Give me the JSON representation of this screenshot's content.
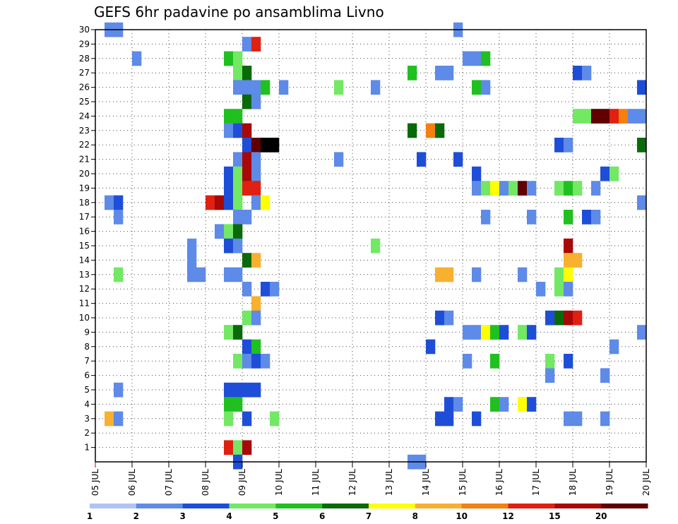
{
  "chart_data": {
    "type": "heatmap",
    "title": "GEFS 6hr padavine po ansamblima Livno",
    "xlabel": "",
    "ylabel": "",
    "x_ticks": [
      "05 JUL",
      "06 JUL",
      "07 JUL",
      "08 JUL",
      "09 JUL",
      "10 JUL",
      "11 JUL",
      "12 JUL",
      "13 JUL",
      "14 JUL",
      "15 JUL",
      "16 JUL",
      "17 JUL",
      "18 JUL",
      "19 JUL",
      "20 JUL"
    ],
    "x_range_days": [
      5,
      20
    ],
    "x_step_hours": 6,
    "y_ticks": [
      1,
      2,
      3,
      4,
      5,
      6,
      7,
      8,
      9,
      10,
      11,
      12,
      13,
      14,
      15,
      16,
      17,
      18,
      19,
      20,
      21,
      22,
      23,
      24,
      25,
      26,
      27,
      28,
      29,
      30
    ],
    "y_range": [
      0,
      30
    ],
    "grid": true,
    "legend": {
      "placement": "bottom",
      "labels": [
        "1",
        "2",
        "3",
        "4",
        "5",
        "6",
        "7",
        "8",
        "10",
        "12",
        "15",
        "20"
      ],
      "colors": [
        "#b0c4f4",
        "#5e8ae8",
        "#1e4ed8",
        "#72e864",
        "#20c020",
        "#0a6a0a",
        "#ffff00",
        "#f8b030",
        "#f48010",
        "#e02010",
        "#a80808",
        "#600000"
      ]
    },
    "cells": [
      [
        0.25,
        30,
        1
      ],
      [
        0.5,
        30,
        1
      ],
      [
        9.75,
        30,
        1
      ],
      [
        4,
        29,
        1
      ],
      [
        4.25,
        29,
        9
      ],
      [
        1,
        28,
        1
      ],
      [
        3.5,
        28,
        4
      ],
      [
        3.75,
        28,
        3
      ],
      [
        10,
        28,
        1
      ],
      [
        10.25,
        28,
        1
      ],
      [
        10.5,
        28,
        4
      ],
      [
        3.75,
        27,
        3
      ],
      [
        4,
        27,
        5
      ],
      [
        8.5,
        27,
        4
      ],
      [
        9.25,
        27,
        1
      ],
      [
        9.5,
        27,
        1
      ],
      [
        13,
        27,
        2
      ],
      [
        13.25,
        27,
        1
      ],
      [
        3.75,
        26,
        1
      ],
      [
        4,
        26,
        1
      ],
      [
        4.25,
        26,
        1
      ],
      [
        4.5,
        26,
        4
      ],
      [
        5,
        26,
        1
      ],
      [
        6.5,
        26,
        3
      ],
      [
        7.5,
        26,
        1
      ],
      [
        10.25,
        26,
        4
      ],
      [
        10.5,
        26,
        1
      ],
      [
        14.75,
        26,
        2
      ],
      [
        4,
        25,
        5
      ],
      [
        4.25,
        25,
        1
      ],
      [
        3.5,
        24,
        4
      ],
      [
        3.75,
        24,
        4
      ],
      [
        13,
        24,
        3
      ],
      [
        13.25,
        24,
        3
      ],
      [
        13.5,
        24,
        11
      ],
      [
        13.75,
        24,
        11
      ],
      [
        14,
        24,
        9
      ],
      [
        14.25,
        24,
        8
      ],
      [
        14.5,
        24,
        1
      ],
      [
        14.75,
        24,
        1
      ],
      [
        3.5,
        23,
        1
      ],
      [
        3.75,
        23,
        2
      ],
      [
        4,
        23,
        10
      ],
      [
        8.5,
        23,
        5
      ],
      [
        9,
        23,
        8
      ],
      [
        9.25,
        23,
        5
      ],
      [
        4,
        22,
        2
      ],
      [
        4.25,
        22,
        11
      ],
      [
        4.5,
        22,
        13
      ],
      [
        4.75,
        22,
        12
      ],
      [
        12.5,
        22,
        2
      ],
      [
        12.75,
        22,
        1
      ],
      [
        14.75,
        22,
        5
      ],
      [
        3.75,
        21,
        1
      ],
      [
        4,
        21,
        10
      ],
      [
        4.25,
        21,
        1
      ],
      [
        6.5,
        21,
        1
      ],
      [
        8.75,
        21,
        2
      ],
      [
        9.75,
        21,
        2
      ],
      [
        3.5,
        20,
        2
      ],
      [
        3.75,
        20,
        3
      ],
      [
        4,
        20,
        10
      ],
      [
        4.25,
        20,
        1
      ],
      [
        10.25,
        20,
        2
      ],
      [
        13.75,
        20,
        2
      ],
      [
        14,
        20,
        3
      ],
      [
        3.5,
        19,
        2
      ],
      [
        3.75,
        19,
        3
      ],
      [
        4,
        19,
        9
      ],
      [
        4.25,
        19,
        9
      ],
      [
        10.25,
        19,
        1
      ],
      [
        10.5,
        19,
        3
      ],
      [
        10.75,
        19,
        6
      ],
      [
        11,
        19,
        1
      ],
      [
        11.25,
        19,
        3
      ],
      [
        11.5,
        19,
        11
      ],
      [
        11.75,
        19,
        1
      ],
      [
        12.5,
        19,
        3
      ],
      [
        12.75,
        19,
        4
      ],
      [
        13,
        19,
        3
      ],
      [
        13.5,
        19,
        1
      ],
      [
        3,
        18,
        9
      ],
      [
        3.25,
        18,
        10
      ],
      [
        3.5,
        18,
        2
      ],
      [
        3.75,
        18,
        3
      ],
      [
        4.25,
        18,
        1
      ],
      [
        4.5,
        18,
        6
      ],
      [
        0.25,
        18,
        1
      ],
      [
        0.5,
        18,
        2
      ],
      [
        14.75,
        18,
        1
      ],
      [
        0.5,
        17,
        1
      ],
      [
        3.75,
        17,
        1
      ],
      [
        4,
        17,
        1
      ],
      [
        10.5,
        17,
        1
      ],
      [
        11.75,
        17,
        1
      ],
      [
        12.75,
        17,
        4
      ],
      [
        13.25,
        17,
        2
      ],
      [
        13.5,
        17,
        1
      ],
      [
        3.25,
        16,
        1
      ],
      [
        3.5,
        16,
        3
      ],
      [
        3.75,
        16,
        5
      ],
      [
        3.5,
        15,
        2
      ],
      [
        3.75,
        15,
        1
      ],
      [
        2.5,
        15,
        1
      ],
      [
        7.5,
        15,
        3
      ],
      [
        12.75,
        15,
        10
      ],
      [
        4,
        14,
        5
      ],
      [
        4.25,
        14,
        7
      ],
      [
        2.5,
        14,
        1
      ],
      [
        12.75,
        14,
        7
      ],
      [
        13,
        14,
        7
      ],
      [
        0.5,
        13,
        3
      ],
      [
        2.5,
        13,
        1
      ],
      [
        2.75,
        13,
        1
      ],
      [
        3.5,
        13,
        1
      ],
      [
        3.75,
        13,
        1
      ],
      [
        9.25,
        13,
        7
      ],
      [
        9.5,
        13,
        7
      ],
      [
        10.25,
        13,
        1
      ],
      [
        11.5,
        13,
        1
      ],
      [
        12.5,
        13,
        3
      ],
      [
        12.75,
        13,
        6
      ],
      [
        4,
        12,
        1
      ],
      [
        4.5,
        12,
        2
      ],
      [
        4.75,
        12,
        1
      ],
      [
        12,
        12,
        1
      ],
      [
        12.5,
        12,
        3
      ],
      [
        12.75,
        12,
        1
      ],
      [
        4.25,
        11,
        7
      ],
      [
        4,
        10,
        3
      ],
      [
        4.25,
        10,
        1
      ],
      [
        9.25,
        10,
        2
      ],
      [
        9.5,
        10,
        1
      ],
      [
        12.25,
        10,
        2
      ],
      [
        12.5,
        10,
        5
      ],
      [
        12.75,
        10,
        10
      ],
      [
        13,
        10,
        9
      ],
      [
        3.5,
        9,
        3
      ],
      [
        3.75,
        9,
        5
      ],
      [
        10,
        9,
        1
      ],
      [
        10.25,
        9,
        1
      ],
      [
        10.5,
        9,
        6
      ],
      [
        10.75,
        9,
        4
      ],
      [
        11,
        9,
        2
      ],
      [
        11.5,
        9,
        3
      ],
      [
        11.75,
        9,
        2
      ],
      [
        14.75,
        9,
        1
      ],
      [
        4,
        8,
        2
      ],
      [
        4.25,
        8,
        4
      ],
      [
        9,
        8,
        2
      ],
      [
        14,
        8,
        1
      ],
      [
        3.75,
        7,
        3
      ],
      [
        4,
        7,
        1
      ],
      [
        4.25,
        7,
        2
      ],
      [
        4.5,
        7,
        1
      ],
      [
        10,
        7,
        1
      ],
      [
        10.75,
        7,
        4
      ],
      [
        12.25,
        7,
        3
      ],
      [
        12.75,
        7,
        2
      ],
      [
        12.25,
        6,
        1
      ],
      [
        13.75,
        6,
        1
      ],
      [
        0.5,
        5,
        1
      ],
      [
        3.5,
        5,
        2
      ],
      [
        3.75,
        5,
        2
      ],
      [
        4,
        5,
        2
      ],
      [
        4.25,
        5,
        2
      ],
      [
        3.5,
        4,
        4
      ],
      [
        3.75,
        4,
        4
      ],
      [
        9.5,
        4,
        2
      ],
      [
        9.75,
        4,
        1
      ],
      [
        10.75,
        4,
        4
      ],
      [
        11,
        4,
        1
      ],
      [
        11.5,
        4,
        6
      ],
      [
        11.75,
        4,
        2
      ],
      [
        0.25,
        3,
        7
      ],
      [
        0.5,
        3,
        1
      ],
      [
        3.5,
        3,
        3
      ],
      [
        4,
        3,
        2
      ],
      [
        4.75,
        3,
        3
      ],
      [
        9.25,
        3,
        2
      ],
      [
        9.5,
        3,
        2
      ],
      [
        10.25,
        3,
        2
      ],
      [
        12.75,
        3,
        1
      ],
      [
        13,
        3,
        1
      ],
      [
        13.75,
        3,
        1
      ],
      [
        3.5,
        1,
        9
      ],
      [
        3.75,
        1,
        3
      ],
      [
        4,
        1,
        10
      ],
      [
        3.75,
        0,
        2
      ],
      [
        8.5,
        0,
        1
      ],
      [
        8.75,
        0,
        1
      ]
    ]
  }
}
